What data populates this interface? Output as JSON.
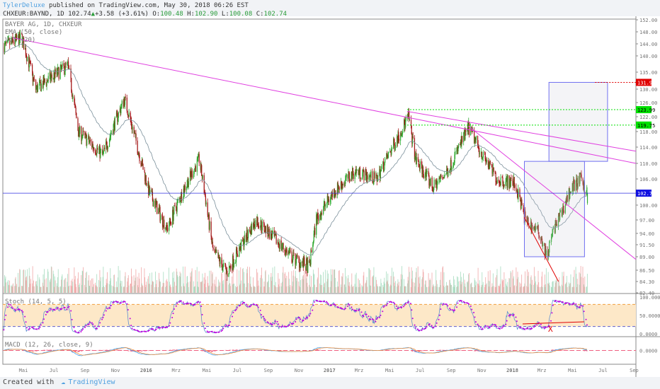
{
  "header": {
    "user": "TylerDeluxe",
    "published": "published on TradingView.com, May 30, 2018 06:26 EST",
    "symbol": "CHXEUR:BAYND, 1D",
    "last": "102.74",
    "change": "+3.58 (+3.61%)",
    "open_label": "O:",
    "open": "100.48",
    "high_label": "H:",
    "high": "102.90",
    "low_label": "L:",
    "low": "100.08",
    "close_label": "C:",
    "close": "102.74"
  },
  "legend": {
    "title": "BAYER AG, 1D, CHXEUR",
    "ema": "EMA (50, close)",
    "vol": "Vol (20)"
  },
  "stoch": {
    "label": "Stoch (14, 5, 5)",
    "axis": [
      "100.0000",
      "50.0000",
      "0.0000"
    ]
  },
  "macd": {
    "label": "MACD (12, 26, close, 9)",
    "axis": [
      "0.0000"
    ]
  },
  "annotations": {
    "x_mark": "X"
  },
  "footer": {
    "created": "Created with",
    "brand": "TradingView"
  },
  "colors": {
    "up": "#2ea82e",
    "down": "#a31515",
    "trendline": "#e040e0",
    "box": "#7070f0",
    "price_line": "#3030e0",
    "target_red": "#e00000",
    "target_green": "#00e000",
    "stoch_fill": "#fde8c8"
  },
  "chart_data": {
    "type": "candlestick",
    "price_axis": [
      "152.00",
      "148.00",
      "144.00",
      "140.00",
      "135.00",
      "130.00",
      "126.00",
      "122.00",
      "118.00",
      "114.00",
      "110.00",
      "106.00",
      "100.00",
      "97.00",
      "94.00",
      "91.50",
      "89.00",
      "86.50",
      "84.30",
      "82.40"
    ],
    "price_axis_values": [
      152,
      148,
      144,
      140,
      135,
      130,
      126,
      122,
      118,
      114,
      110,
      106,
      100,
      97,
      94,
      91.5,
      89,
      86.5,
      84.3,
      82.4
    ],
    "time_axis": [
      "Mai",
      "Jul",
      "Sep",
      "Nov",
      "2016",
      "Mrz",
      "Mai",
      "Jul",
      "Sep",
      "Nov",
      "2017",
      "Mrz",
      "Mai",
      "Jul",
      "Sep",
      "Nov",
      "2018",
      "Mrz",
      "Mai",
      "Jul",
      "Sep"
    ],
    "time_axis_dates": [
      "2015-05-01",
      "2015-07-01",
      "2015-09-01",
      "2015-11-01",
      "2016-01-01",
      "2016-03-01",
      "2016-05-01",
      "2016-07-01",
      "2016-09-01",
      "2016-11-01",
      "2017-01-01",
      "2017-03-01",
      "2017-05-01",
      "2017-07-01",
      "2017-09-01",
      "2017-11-01",
      "2018-01-01",
      "2018-03-01",
      "2018-05-01",
      "2018-07-01",
      "2018-09-01"
    ],
    "badges": [
      {
        "label": "131.99",
        "price": 131.99,
        "color": "#e00000"
      },
      {
        "label": "123.99",
        "price": 123.99,
        "color": "#00e000"
      },
      {
        "label": "119.75",
        "price": 119.75,
        "color": "#00e000"
      },
      {
        "label": "102.74",
        "price": 102.74,
        "color": "#1010e0"
      }
    ],
    "close_path": [
      [
        "2015-03-22",
        143
      ],
      [
        "2015-04-27",
        146
      ],
      [
        "2015-05-25",
        130
      ],
      [
        "2015-07-28",
        137
      ],
      [
        "2015-08-18",
        118
      ],
      [
        "2015-10-06",
        112
      ],
      [
        "2015-11-18",
        127
      ],
      [
        "2015-12-16",
        113
      ],
      [
        "2016-01-06",
        103
      ],
      [
        "2016-02-11",
        95
      ],
      [
        "2016-03-17",
        104
      ],
      [
        "2016-04-15",
        111
      ],
      [
        "2016-05-13",
        90
      ],
      [
        "2016-06-10",
        86
      ],
      [
        "2016-08-07",
        97
      ],
      [
        "2016-09-11",
        93
      ],
      [
        "2016-10-16",
        89
      ],
      [
        "2016-11-21",
        87
      ],
      [
        "2016-12-05",
        97
      ],
      [
        "2017-01-09",
        103
      ],
      [
        "2017-02-21",
        108
      ],
      [
        "2017-04-04",
        106
      ],
      [
        "2017-06-07",
        122
      ],
      [
        "2017-06-21",
        111
      ],
      [
        "2017-07-26",
        104
      ],
      [
        "2017-08-24",
        108
      ],
      [
        "2017-10-05",
        119
      ],
      [
        "2017-11-02",
        112
      ],
      [
        "2017-12-01",
        106
      ],
      [
        "2018-01-05",
        105
      ],
      [
        "2018-01-26",
        97
      ],
      [
        "2018-02-24",
        94
      ],
      [
        "2018-03-10",
        89
      ],
      [
        "2018-03-24",
        95
      ],
      [
        "2018-04-07",
        98
      ],
      [
        "2018-04-28",
        104
      ],
      [
        "2018-05-18",
        106
      ],
      [
        "2018-05-30",
        102.74
      ]
    ],
    "trendlines": [
      {
        "from": [
          "2015-04-10",
          146
        ],
        "to": [
          "2018-09-15",
          110
        ]
      },
      {
        "from": [
          "2017-06-05",
          123.5
        ],
        "to": [
          "2018-09-15",
          113
        ]
      },
      {
        "from": [
          "2017-10-05",
          119.5
        ],
        "to": [
          "2018-09-15",
          88.5
        ]
      },
      {
        "from": [
          "2018-01-25",
          97.5
        ],
        "to": [
          "2018-04-03",
          84.3
        ],
        "color": "#e00000"
      }
    ],
    "boxes": [
      {
        "from": [
          "2018-01-25",
          110.5
        ],
        "to": [
          "2018-05-25",
          89
        ]
      },
      {
        "from": [
          "2018-03-15",
          131.99
        ],
        "to": [
          "2018-07-10",
          110.5
        ]
      }
    ],
    "targets": [
      {
        "price": 131.99,
        "from": "2018-06-15",
        "color": "#e00000"
      },
      {
        "price": 123.99,
        "from": "2017-06-05",
        "color": "#00e000"
      },
      {
        "price": 119.75,
        "from": "2017-06-05",
        "color": "#00e000"
      }
    ],
    "stoch_levels": [
      80,
      20
    ]
  }
}
